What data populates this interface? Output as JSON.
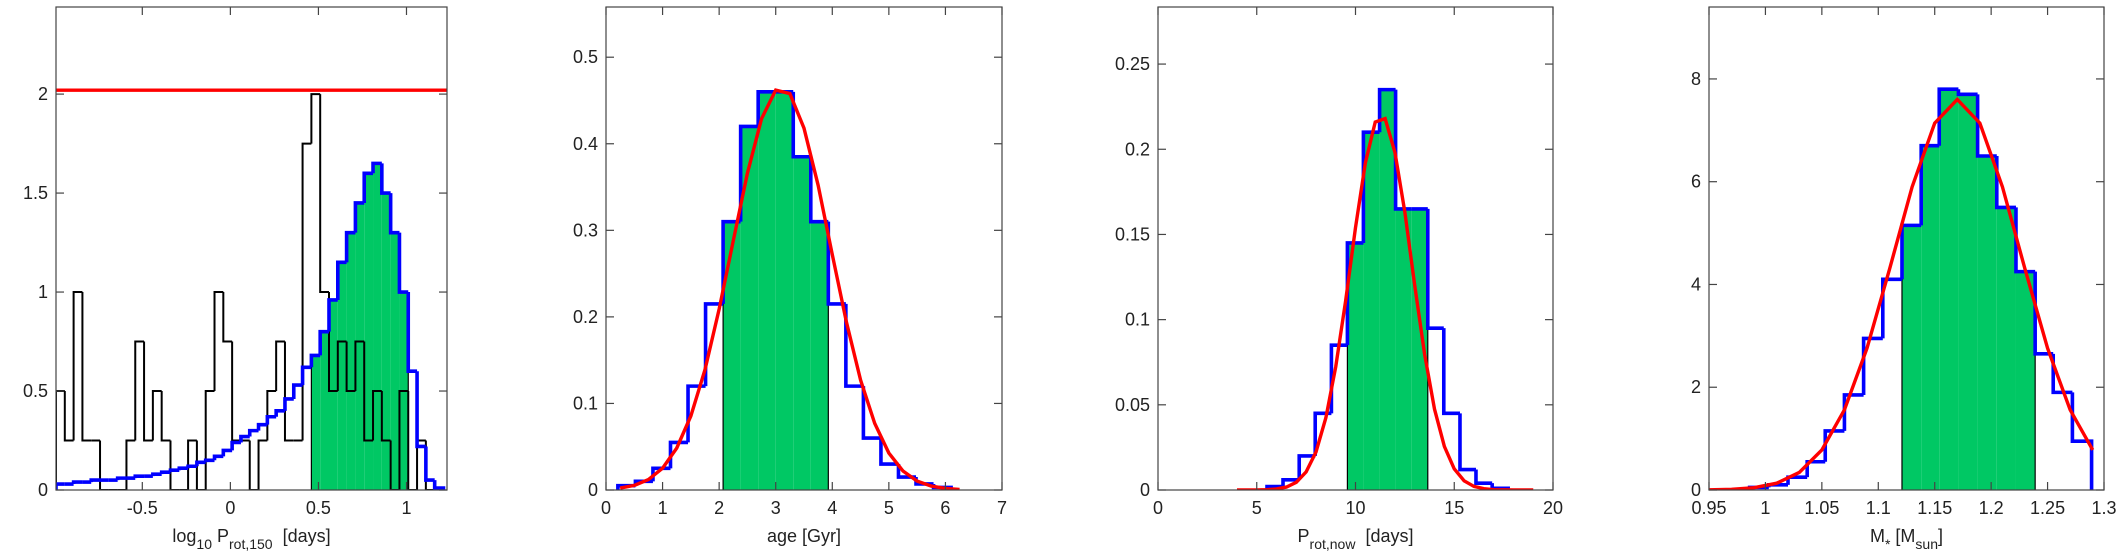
{
  "chart_data": [
    {
      "type": "histogram",
      "xlabel": [
        {
          "text": "log"
        },
        {
          "sub": "10"
        },
        {
          "text": " P"
        },
        {
          "sub": "rot,150"
        },
        {
          "text": "  [days]"
        }
      ],
      "xlim": [
        -0.99,
        1.23
      ],
      "ylim": [
        0,
        2.44
      ],
      "xticks": [
        -0.5,
        0,
        0.5,
        1
      ],
      "yticks": [
        0,
        0.5,
        1,
        1.5,
        2
      ],
      "bins": [
        -0.99,
        -0.94,
        -0.89,
        -0.84,
        -0.79,
        -0.74,
        -0.69,
        -0.64,
        -0.59,
        -0.54,
        -0.49,
        -0.44,
        -0.39,
        -0.34,
        -0.29,
        -0.24,
        -0.19,
        -0.14,
        -0.09,
        -0.04,
        0.01,
        0.06,
        0.11,
        0.16,
        0.21,
        0.26,
        0.31,
        0.36,
        0.41,
        0.46,
        0.51,
        0.56,
        0.61,
        0.66,
        0.71,
        0.76,
        0.81,
        0.86,
        0.91,
        0.96,
        1.01,
        1.06,
        1.11,
        1.16,
        1.21
      ],
      "series": [
        {
          "color": "#0000ff",
          "values": [
            0.03,
            0.03,
            0.04,
            0.04,
            0.05,
            0.05,
            0.05,
            0.06,
            0.06,
            0.07,
            0.07,
            0.08,
            0.09,
            0.1,
            0.11,
            0.12,
            0.14,
            0.15,
            0.17,
            0.2,
            0.24,
            0.27,
            0.3,
            0.33,
            0.37,
            0.4,
            0.46,
            0.53,
            0.62,
            0.68,
            0.8,
            0.96,
            1.15,
            1.3,
            1.45,
            1.6,
            1.65,
            1.5,
            1.3,
            1.0,
            0.6,
            0.22,
            0.05,
            0.01
          ]
        },
        {
          "color": "#000000",
          "values": [
            0.5,
            0.25,
            1,
            0.25,
            0.25,
            0,
            0,
            0,
            0.25,
            0.75,
            0.25,
            0.5,
            0.25,
            0,
            0,
            0.25,
            0,
            0.5,
            1,
            0.75,
            0.25,
            0.25,
            0,
            0.25,
            0.5,
            0.75,
            0.25,
            0.25,
            1.75,
            2,
            1,
            0.5,
            0.75,
            0.5,
            0.75,
            0.25,
            0.5,
            0.25,
            0,
            0.5,
            0,
            0.25,
            0,
            0
          ]
        }
      ],
      "fill": {
        "color": "#00c864",
        "xlim": [
          0.46,
          1.01
        ]
      },
      "hline": {
        "value": 2.02,
        "color": "#ff0000"
      }
    },
    {
      "type": "histogram",
      "xlabel": [
        {
          "text": "age [Gyr]"
        }
      ],
      "xlim": [
        0,
        7
      ],
      "ylim": [
        0,
        0.558
      ],
      "xticks": [
        0,
        1,
        2,
        3,
        4,
        5,
        6,
        7
      ],
      "yticks": [
        0,
        0.1,
        0.2,
        0.3,
        0.4,
        0.5
      ],
      "bins": [
        0.21,
        0.52,
        0.83,
        1.14,
        1.45,
        1.76,
        2.07,
        2.38,
        2.69,
        3.0,
        3.31,
        3.62,
        3.93,
        4.24,
        4.55,
        4.86,
        5.17,
        5.48,
        5.79,
        6.1
      ],
      "series": [
        {
          "color": "#0000ff",
          "values": [
            0.005,
            0.01,
            0.025,
            0.055,
            0.12,
            0.215,
            0.31,
            0.42,
            0.46,
            0.46,
            0.385,
            0.31,
            0.215,
            0.12,
            0.06,
            0.03,
            0.015,
            0.007,
            0.003
          ]
        }
      ],
      "fill": {
        "color": "#00c864",
        "xlim": [
          2.07,
          3.93
        ]
      },
      "curve": {
        "color": "#ff0000",
        "x": [
          0.25,
          0.5,
          0.75,
          1.0,
          1.25,
          1.5,
          1.75,
          2.0,
          2.25,
          2.5,
          2.75,
          3.0,
          3.25,
          3.5,
          3.75,
          4.0,
          4.25,
          4.5,
          4.75,
          5.0,
          5.25,
          5.5,
          5.75,
          6.0,
          6.25
        ],
        "values": [
          0.0022,
          0.0053,
          0.0121,
          0.0252,
          0.0484,
          0.0855,
          0.139,
          0.209,
          0.288,
          0.366,
          0.429,
          0.462,
          0.458,
          0.418,
          0.352,
          0.272,
          0.194,
          0.127,
          0.077,
          0.0427,
          0.0219,
          0.0103,
          0.0045,
          0.0018,
          0.0007
        ]
      }
    },
    {
      "type": "histogram",
      "xlabel": [
        {
          "text": "P"
        },
        {
          "sub": "rot,now"
        },
        {
          "text": "  [days]"
        }
      ],
      "xlim": [
        0,
        20
      ],
      "ylim": [
        0,
        0.2835
      ],
      "xticks": [
        0,
        5,
        10,
        15,
        20
      ],
      "yticks": [
        0,
        0.05,
        0.1,
        0.15,
        0.2,
        0.25
      ],
      "bins": [
        5.52,
        6.33,
        7.15,
        7.96,
        8.78,
        9.59,
        10.4,
        11.22,
        12.03,
        12.85,
        13.66,
        14.47,
        15.29,
        16.1,
        16.92,
        17.73
      ],
      "series": [
        {
          "color": "#0000ff",
          "values": [
            0.002,
            0.006,
            0.02,
            0.045,
            0.085,
            0.145,
            0.21,
            0.235,
            0.165,
            0.165,
            0.095,
            0.045,
            0.012,
            0.004,
            0.001
          ]
        }
      ],
      "fill": {
        "color": "#00c864",
        "xlim": [
          9.59,
          13.66
        ]
      },
      "curve": {
        "color": "#ff0000",
        "x": [
          4,
          4.5,
          5,
          5.5,
          6,
          6.5,
          7,
          7.5,
          8,
          8.5,
          9,
          9.5,
          10,
          10.5,
          11,
          11.5,
          12,
          12.5,
          13,
          13.5,
          14,
          14.5,
          15,
          15.5,
          16,
          16.5,
          17,
          17.5,
          18,
          18.5,
          19
        ],
        "values": [
          3e-06,
          1e-05,
          5e-05,
          0.0002,
          0.0006,
          0.0017,
          0.0045,
          0.0106,
          0.0223,
          0.0424,
          0.0724,
          0.111,
          0.154,
          0.192,
          0.216,
          0.218,
          0.198,
          0.163,
          0.12,
          0.0796,
          0.0475,
          0.0256,
          0.0124,
          0.0054,
          0.0021,
          0.0008,
          0.0002,
          7e-05,
          2e-05,
          5e-06,
          1e-06
        ]
      }
    },
    {
      "type": "histogram",
      "xlabel": [
        {
          "text": "M"
        },
        {
          "sub": "*"
        },
        {
          "text": " [M"
        },
        {
          "sub": "sun"
        },
        {
          "text": "]"
        }
      ],
      "xlim": [
        0.95,
        1.3
      ],
      "ylim": [
        0,
        9.4
      ],
      "xticks": [
        0.95,
        1,
        1.05,
        1.1,
        1.15,
        1.2,
        1.25,
        1.3
      ],
      "yticks": [
        0,
        2,
        4,
        6,
        8
      ],
      "bins": [
        0.986,
        1.003,
        1.02,
        1.037,
        1.053,
        1.07,
        1.087,
        1.104,
        1.121,
        1.138,
        1.154,
        1.171,
        1.188,
        1.205,
        1.222,
        1.239,
        1.255,
        1.272,
        1.289
      ],
      "series": [
        {
          "color": "#0000ff",
          "values": [
            0.05,
            0.1,
            0.25,
            0.55,
            1.15,
            1.85,
            2.95,
            4.1,
            5.15,
            6.7,
            7.8,
            7.7,
            6.5,
            5.5,
            4.25,
            2.65,
            1.9,
            0.95
          ]
        }
      ],
      "fill": {
        "color": "#00c864",
        "xlim": [
          1.121,
          1.239
        ]
      },
      "curve": {
        "color": "#ff0000",
        "x": [
          0.95,
          0.97,
          0.99,
          1.01,
          1.03,
          1.05,
          1.07,
          1.09,
          1.11,
          1.13,
          1.15,
          1.17,
          1.19,
          1.21,
          1.23,
          1.25,
          1.27,
          1.29
        ],
        "values": [
          0.0036,
          0.0135,
          0.045,
          0.132,
          0.342,
          0.78,
          1.56,
          2.76,
          4.3,
          5.9,
          7.14,
          7.6,
          7.14,
          5.9,
          4.3,
          2.76,
          1.56,
          0.78
        ]
      }
    }
  ]
}
